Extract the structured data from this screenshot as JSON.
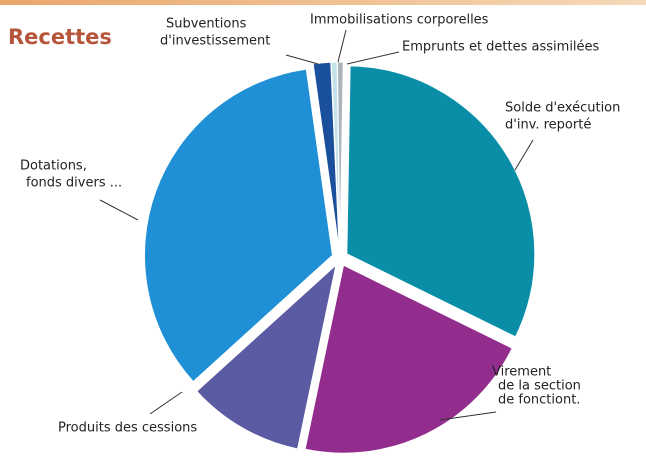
{
  "chart_data": {
    "type": "pie",
    "title": "Recettes",
    "categories": [
      [
        "Subventions",
        "d'investissement"
      ],
      [
        "Immobilisations corporelles"
      ],
      [
        "Emprunts et dettes assimilées"
      ],
      [
        "Solde d'exécution",
        "d'inv. reporté"
      ],
      [
        "Virement",
        "de la section",
        "de fonctiont."
      ],
      [
        "Produits des cessions"
      ],
      [
        "Dotations,",
        "fonds divers ..."
      ]
    ],
    "values": [
      1.5,
      0.5,
      0.5,
      32,
      21,
      10,
      34.5
    ],
    "colors": [
      "#1a4f9c",
      "#c4e2ec",
      "#a9b4bd",
      "#0a8ea8",
      "#922d8e",
      "#5b5ba3",
      "#1f8fd6"
    ],
    "start_angle": -8
  }
}
